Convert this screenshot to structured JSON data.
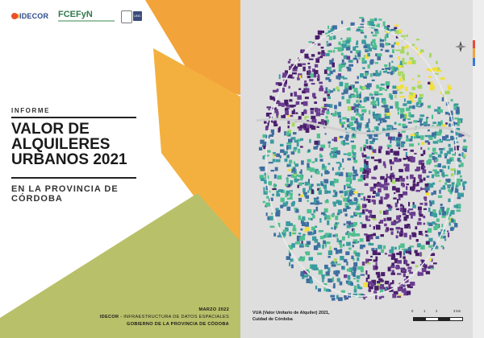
{
  "logos": {
    "idecor": "IDECOR",
    "fcefyn": "FCEFyN",
    "unc": "UNC"
  },
  "report": {
    "kicker": "INFORME",
    "title": "VALOR DE ALQUILERES URBANOS 2021",
    "subtitle": "EN LA PROVINCIA DE CÓRDOBA"
  },
  "footer": {
    "date": "MARZO 2022",
    "org_bold": "IDECOR",
    "org_rest": "- INFRAESTRUCTURA DE DATOS ESPACIALES",
    "government": "GOBIERNO DE LA PROVINCIA DE CÓDOBA"
  },
  "map": {
    "caption_line1": "VUA (Valor Unitario de Alquiler) 2021,",
    "caption_line2": "Cuidad de Córdoba",
    "scale_ticks": [
      "0",
      "1",
      "2",
      "3 km"
    ],
    "palette": [
      "#4a1e6b",
      "#6a3d8f",
      "#3f6ea0",
      "#3a9ba0",
      "#4fbf8f",
      "#a6d860",
      "#f1e03a"
    ]
  },
  "colors": {
    "orange": "#f2a43a",
    "olive": "#b9c06a",
    "dark_text": "#1a1a1a"
  }
}
